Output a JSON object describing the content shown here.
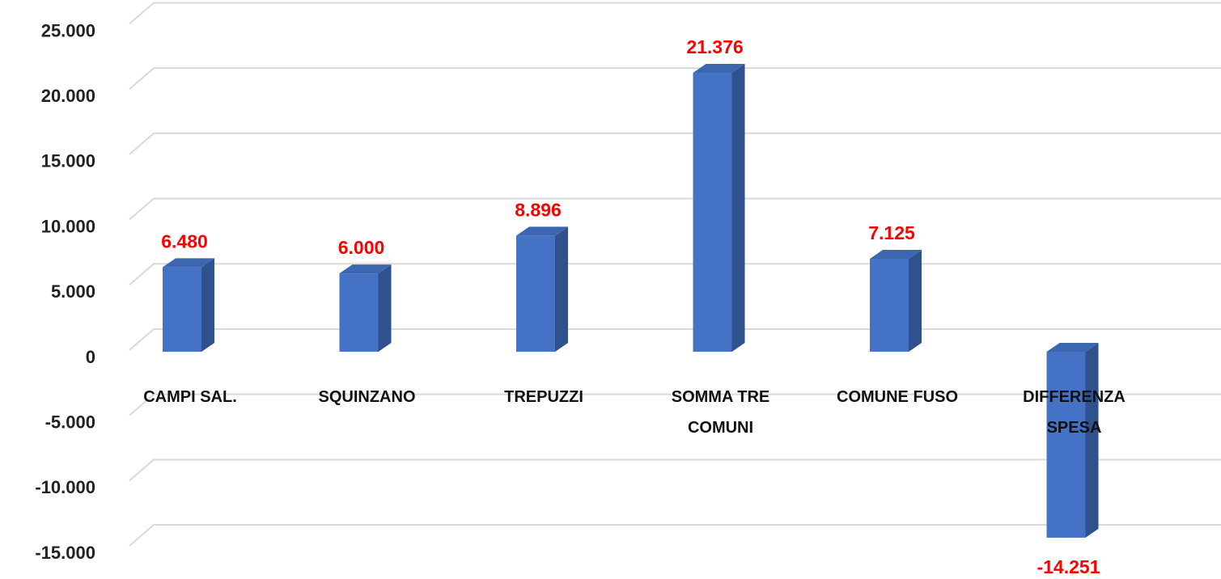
{
  "chart_data": {
    "type": "bar3d",
    "categories": [
      "CAMPI SAL.",
      "SQUINZANO",
      "TREPUZZI",
      "SOMMA TRE COMUNI",
      "COMUNE FUSO",
      "DIFFERENZA SPESA"
    ],
    "values": [
      6480,
      6000,
      8896,
      21376,
      7125,
      -14251
    ],
    "value_labels": [
      "6.480",
      "6.000",
      "8.896",
      "21.376",
      "7.125",
      "-14.251"
    ],
    "color": "#4472c4",
    "value_label_color": "#ff0000",
    "ylim": [
      -15000,
      25000
    ],
    "yticks": [
      {
        "value": -15000,
        "label": "-15.000"
      },
      {
        "value": -10000,
        "label": "-10.000"
      },
      {
        "value": -5000,
        "label": "-5.000"
      },
      0,
      {
        "value": 5000,
        "label": "5.000"
      },
      {
        "value": 10000,
        "label": "10.000"
      },
      {
        "value": 15000,
        "label": "15.000"
      },
      {
        "value": 20000,
        "label": "20.000"
      },
      {
        "value": 25000,
        "label": "25.000"
      }
    ],
    "grid": true
  }
}
